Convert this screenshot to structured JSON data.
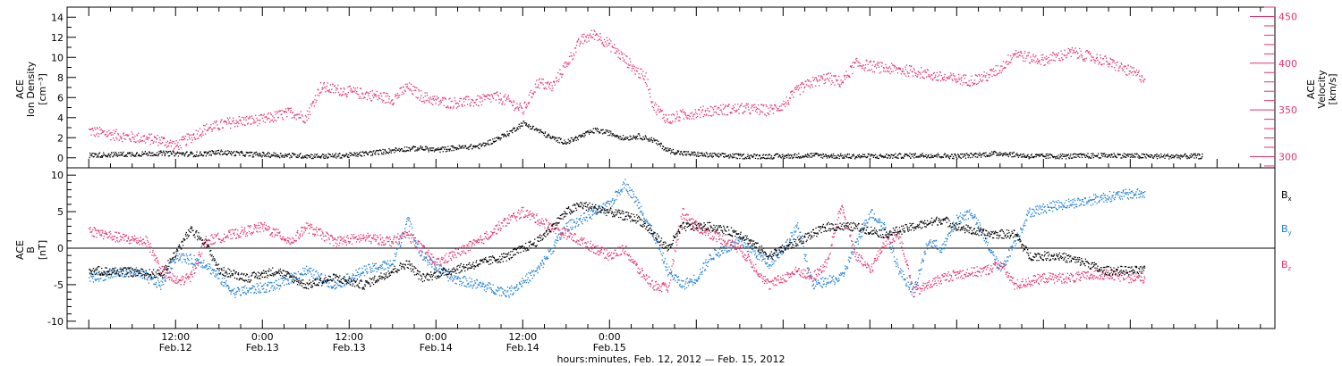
{
  "chart_data": [
    {
      "type": "scatter",
      "panel": "top",
      "ylabel_left": [
        "ACE",
        "Ion Density",
        "[cm⁻³]"
      ],
      "ylabel_right": [
        "ACE",
        "Velocity",
        "[km/s]"
      ],
      "ylim_left": [
        -1,
        15
      ],
      "ylim_right": [
        288,
        460
      ],
      "left_ticks": [
        "0",
        "2",
        "4",
        "6",
        "8",
        "10",
        "12",
        "14"
      ],
      "right_ticks": [
        "300",
        "350",
        "400",
        "450"
      ],
      "colors": {
        "density": "#000000",
        "velocity": "#e8336b"
      },
      "series": [
        {
          "name": "Ion Density",
          "axis": "left",
          "points": [
            [
              0,
              0.3
            ],
            [
              5,
              0.4
            ],
            [
              10,
              0.5
            ],
            [
              15,
              0.4
            ],
            [
              18,
              0.6
            ],
            [
              22,
              0.4
            ],
            [
              27,
              0.3
            ],
            [
              32,
              0.2
            ],
            [
              36,
              0.3
            ],
            [
              40,
              0.6
            ],
            [
              43,
              0.9
            ],
            [
              46,
              1.0
            ],
            [
              48,
              0.8
            ],
            [
              50,
              1.0
            ],
            [
              54,
              1.2
            ],
            [
              56,
              1.8
            ],
            [
              58,
              2.5
            ],
            [
              60,
              3.5
            ],
            [
              62,
              2.8
            ],
            [
              64,
              2.0
            ],
            [
              66,
              1.6
            ],
            [
              68,
              2.2
            ],
            [
              70,
              2.8
            ],
            [
              72,
              2.5
            ],
            [
              74,
              2.0
            ],
            [
              76,
              2.2
            ],
            [
              78,
              1.8
            ],
            [
              80,
              0.8
            ],
            [
              82,
              0.5
            ],
            [
              86,
              0.3
            ],
            [
              90,
              0.2
            ],
            [
              96,
              0.2
            ],
            [
              100,
              0.3
            ],
            [
              104,
              0.2
            ],
            [
              110,
              0.2
            ],
            [
              116,
              0.3
            ],
            [
              120,
              0.2
            ],
            [
              126,
              0.5
            ],
            [
              130,
              0.2
            ],
            [
              136,
              0.2
            ],
            [
              142,
              0.3
            ],
            [
              146,
              0.2
            ],
            [
              150,
              0.2
            ],
            [
              154,
              0.2
            ]
          ]
        },
        {
          "name": "Velocity",
          "axis": "right",
          "points": [
            [
              0,
              328
            ],
            [
              5,
              322
            ],
            [
              10,
              318
            ],
            [
              12,
              312
            ],
            [
              16,
              330
            ],
            [
              20,
              338
            ],
            [
              24,
              340
            ],
            [
              28,
              348
            ],
            [
              30,
              342
            ],
            [
              32,
              375
            ],
            [
              36,
              370
            ],
            [
              40,
              365
            ],
            [
              42,
              362
            ],
            [
              44,
              375
            ],
            [
              46,
              365
            ],
            [
              48,
              360
            ],
            [
              50,
              358
            ],
            [
              54,
              360
            ],
            [
              56,
              365
            ],
            [
              58,
              360
            ],
            [
              60,
              350
            ],
            [
              62,
              380
            ],
            [
              64,
              375
            ],
            [
              66,
              400
            ],
            [
              68,
              425
            ],
            [
              70,
              432
            ],
            [
              72,
              420
            ],
            [
              74,
              405
            ],
            [
              76,
              390
            ],
            [
              77,
              385
            ],
            [
              78,
              355
            ],
            [
              80,
              340
            ],
            [
              82,
              345
            ],
            [
              86,
              350
            ],
            [
              90,
              352
            ],
            [
              94,
              350
            ],
            [
              96,
              356
            ],
            [
              98,
              372
            ],
            [
              100,
              380
            ],
            [
              102,
              385
            ],
            [
              104,
              380
            ],
            [
              106,
              400
            ],
            [
              110,
              395
            ],
            [
              114,
              392
            ],
            [
              118,
              385
            ],
            [
              122,
              382
            ],
            [
              124,
              386
            ],
            [
              126,
              395
            ],
            [
              128,
              412
            ],
            [
              130,
              406
            ],
            [
              132,
              404
            ],
            [
              136,
              412
            ],
            [
              140,
              404
            ],
            [
              142,
              398
            ],
            [
              145,
              388
            ],
            [
              146,
              384
            ]
          ]
        }
      ]
    },
    {
      "type": "scatter",
      "panel": "bottom",
      "ylabel": [
        "ACE",
        "B",
        "[nT]"
      ],
      "ylim": [
        -11,
        11
      ],
      "ticks": [
        "10",
        "5",
        "0",
        "-5",
        "-10"
      ],
      "xlabel": "hours:minutes, Feb. 12, 2012 — Feb. 15, 2012",
      "xlim": [
        -3,
        164
      ],
      "xtick_labels": [
        {
          "time": "12:00",
          "date": "Feb.12"
        },
        {
          "time": "0:00",
          "date": "Feb.13"
        },
        {
          "time": "12:00",
          "date": "Feb.13"
        },
        {
          "time": "0:00",
          "date": "Feb.14"
        },
        {
          "time": "12:00",
          "date": "Feb.14"
        },
        {
          "time": "0:00",
          "date": "Feb.15"
        }
      ],
      "colors": {
        "Bx": "#000000",
        "By": "#1f7fd6",
        "Bz": "#e8336b"
      },
      "series": [
        {
          "name": "Bx",
          "points": [
            [
              0,
              -3
            ],
            [
              5,
              -3.2
            ],
            [
              10,
              -3.5
            ],
            [
              14,
              2.5
            ],
            [
              16,
              1
            ],
            [
              18,
              -3
            ],
            [
              22,
              -4
            ],
            [
              26,
              -3
            ],
            [
              30,
              -5
            ],
            [
              34,
              -4
            ],
            [
              38,
              -5
            ],
            [
              42,
              -3
            ],
            [
              44,
              -2
            ],
            [
              46,
              -4
            ],
            [
              50,
              -3
            ],
            [
              54,
              -2
            ],
            [
              58,
              -1
            ],
            [
              62,
              1
            ],
            [
              66,
              5
            ],
            [
              68,
              6
            ],
            [
              72,
              5
            ],
            [
              76,
              4
            ],
            [
              78,
              2
            ],
            [
              80,
              0
            ],
            [
              82,
              3
            ],
            [
              86,
              3
            ],
            [
              90,
              2
            ],
            [
              94,
              -1
            ],
            [
              98,
              1
            ],
            [
              102,
              3
            ],
            [
              106,
              3
            ],
            [
              110,
              2
            ],
            [
              114,
              3
            ],
            [
              118,
              4
            ],
            [
              120,
              3
            ],
            [
              124,
              2
            ],
            [
              128,
              2
            ],
            [
              130,
              -1
            ],
            [
              134,
              -1
            ],
            [
              138,
              -2
            ],
            [
              140,
              -3
            ],
            [
              144,
              -3
            ],
            [
              146,
              -3
            ]
          ]
        },
        {
          "name": "By",
          "points": [
            [
              0,
              -4
            ],
            [
              6,
              -3
            ],
            [
              10,
              -5
            ],
            [
              12,
              -1
            ],
            [
              16,
              -2
            ],
            [
              20,
              -6
            ],
            [
              26,
              -5
            ],
            [
              30,
              -3
            ],
            [
              34,
              -5
            ],
            [
              38,
              -3
            ],
            [
              42,
              -2
            ],
            [
              44,
              4
            ],
            [
              46,
              -1
            ],
            [
              50,
              -4
            ],
            [
              54,
              -5
            ],
            [
              58,
              -6
            ],
            [
              62,
              -3
            ],
            [
              64,
              0
            ],
            [
              66,
              3
            ],
            [
              68,
              4
            ],
            [
              70,
              5
            ],
            [
              72,
              6
            ],
            [
              74,
              9
            ],
            [
              76,
              6
            ],
            [
              78,
              2
            ],
            [
              80,
              -3
            ],
            [
              82,
              -5
            ],
            [
              84,
              -4
            ],
            [
              86,
              -1
            ],
            [
              90,
              1
            ],
            [
              94,
              -2
            ],
            [
              96,
              0
            ],
            [
              98,
              3
            ],
            [
              100,
              -5
            ],
            [
              104,
              -4
            ],
            [
              108,
              5
            ],
            [
              110,
              3
            ],
            [
              112,
              -3
            ],
            [
              114,
              -6
            ],
            [
              116,
              1
            ],
            [
              118,
              0
            ],
            [
              120,
              4
            ],
            [
              122,
              5
            ],
            [
              124,
              1
            ],
            [
              126,
              -3
            ],
            [
              128,
              1
            ],
            [
              130,
              5
            ],
            [
              134,
              6
            ],
            [
              138,
              6.5
            ],
            [
              140,
              7
            ],
            [
              144,
              7.5
            ],
            [
              146,
              7.5
            ]
          ]
        },
        {
          "name": "Bz",
          "points": [
            [
              0,
              2.5
            ],
            [
              4,
              1.5
            ],
            [
              8,
              1
            ],
            [
              10,
              -3
            ],
            [
              12,
              -4.5
            ],
            [
              14,
              -4
            ],
            [
              16,
              1
            ],
            [
              20,
              2
            ],
            [
              24,
              3
            ],
            [
              26,
              2
            ],
            [
              28,
              1
            ],
            [
              30,
              3
            ],
            [
              34,
              1
            ],
            [
              38,
              1.5
            ],
            [
              42,
              1
            ],
            [
              44,
              2
            ],
            [
              46,
              0
            ],
            [
              48,
              -2
            ],
            [
              50,
              -1
            ],
            [
              54,
              1
            ],
            [
              58,
              4
            ],
            [
              60,
              5
            ],
            [
              62,
              4
            ],
            [
              64,
              3
            ],
            [
              66,
              2
            ],
            [
              68,
              1
            ],
            [
              70,
              0
            ],
            [
              72,
              -1
            ],
            [
              74,
              0
            ],
            [
              76,
              -3
            ],
            [
              78,
              -5
            ],
            [
              80,
              -5.5
            ],
            [
              82,
              5
            ],
            [
              84,
              3
            ],
            [
              86,
              2
            ],
            [
              90,
              0
            ],
            [
              94,
              -5
            ],
            [
              98,
              -3
            ],
            [
              100,
              -4
            ],
            [
              102,
              -2
            ],
            [
              104,
              6
            ],
            [
              106,
              -1
            ],
            [
              108,
              -3
            ],
            [
              110,
              1
            ],
            [
              112,
              2
            ],
            [
              114,
              -6
            ],
            [
              116,
              -5
            ],
            [
              118,
              -4
            ],
            [
              120,
              -3.5
            ],
            [
              124,
              -3
            ],
            [
              126,
              -2
            ],
            [
              128,
              -5
            ],
            [
              132,
              -4
            ],
            [
              136,
              -4
            ],
            [
              140,
              -3.5
            ],
            [
              144,
              -4
            ],
            [
              146,
              -4
            ]
          ]
        }
      ],
      "legend": [
        {
          "base": "B",
          "sub": "x"
        },
        {
          "base": "B",
          "sub": "y"
        },
        {
          "base": "B",
          "sub": "z"
        }
      ]
    }
  ]
}
